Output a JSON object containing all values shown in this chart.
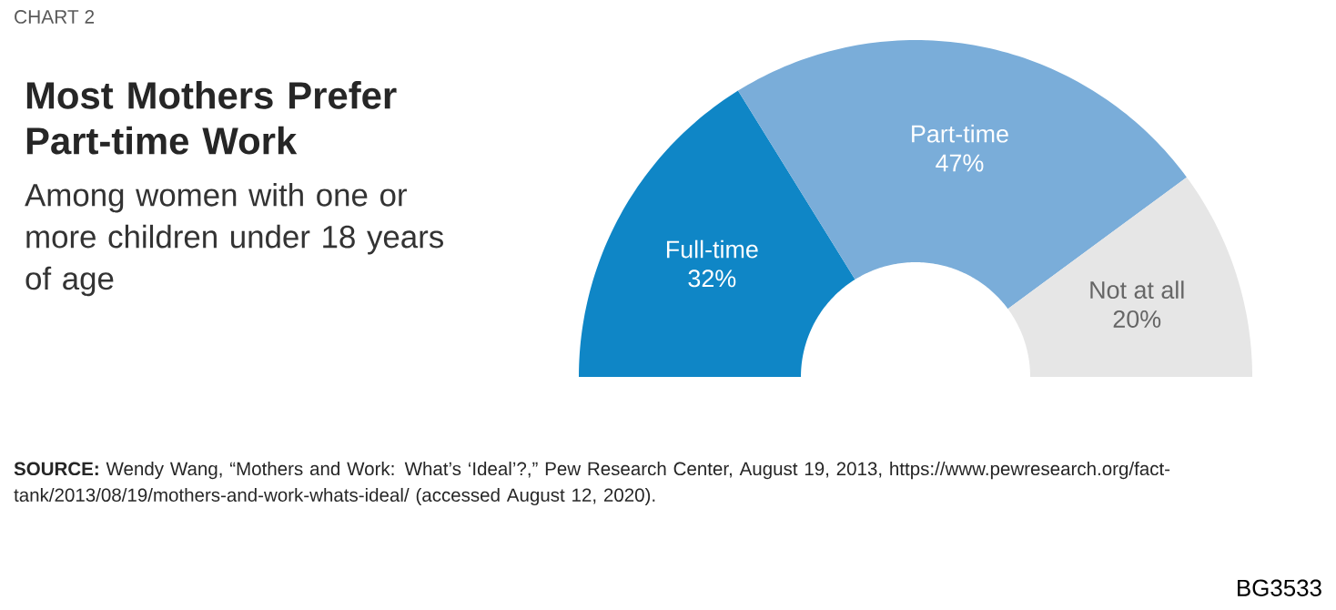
{
  "chart_data": {
    "type": "donut",
    "title": "Most Mothers Prefer Part-time Work",
    "subtitle": "Among women with one or more children under 18 years of age",
    "categories": [
      "Full-time",
      "Part-time",
      "Not at all"
    ],
    "values": [
      32,
      47,
      20
    ],
    "value_labels": [
      "32%",
      "47%",
      "20%"
    ],
    "colors": [
      "#0f86c6",
      "#7aadd9",
      "#e6e6e6"
    ],
    "annotations": [
      "CHART 2",
      "**SOURCE:** Wendy Wang, “Mothers and Work: What’s ‘Ideal’?,” Pew Research Center, August 19, 2013, https://www.pewresearch.org/fact-tank/2013/08/19/mothers-and-work-whats-ideal/ (accessed August 12, 2020).",
      "BG3533"
    ]
  }
}
